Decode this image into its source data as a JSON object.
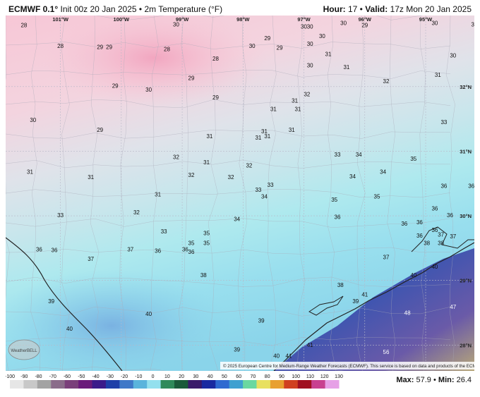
{
  "header": {
    "model": "ECMWF 0.1°",
    "init": "Init 00z 20 Jan 2025",
    "sep": "•",
    "variable": "2m Temperature (°F)",
    "hour_label": "Hour:",
    "hour": "17",
    "valid_label": "Valid:",
    "valid": "17z Mon 20 Jan 2025"
  },
  "map": {
    "lon_labels": [
      "101°W",
      "100°W",
      "99°W",
      "98°W",
      "97°W",
      "96°W",
      "95°W"
    ],
    "lat_labels": [
      "32°N",
      "31°N",
      "30°N",
      "29°N",
      "28°N"
    ],
    "logo_text": "WeatherBELL",
    "copyright": "© 2025 European Centre for Medium-Range Weather Forecasts (ECMWF). This service is based on data and products of the ECMWF.",
    "temps": [
      {
        "v": "28",
        "lon": -101.6,
        "lat": 32.92
      },
      {
        "v": "28",
        "lon": -101.0,
        "lat": 32.6
      },
      {
        "v": "29",
        "lon": -100.35,
        "lat": 32.58
      },
      {
        "v": "29",
        "lon": -100.2,
        "lat": 32.58
      },
      {
        "v": "30",
        "lon": -99.1,
        "lat": 32.93
      },
      {
        "v": "28",
        "lon": -99.25,
        "lat": 32.55
      },
      {
        "v": "28",
        "lon": -98.45,
        "lat": 32.4
      },
      {
        "v": "30",
        "lon": -97.85,
        "lat": 32.6
      },
      {
        "v": "29",
        "lon": -97.6,
        "lat": 32.72
      },
      {
        "v": "29",
        "lon": -97.4,
        "lat": 32.57
      },
      {
        "v": "30",
        "lon": -97.0,
        "lat": 32.9
      },
      {
        "v": "30",
        "lon": -96.9,
        "lat": 32.9
      },
      {
        "v": "30",
        "lon": -96.7,
        "lat": 32.75
      },
      {
        "v": "30",
        "lon": -96.35,
        "lat": 32.95
      },
      {
        "v": "29",
        "lon": -96.0,
        "lat": 32.92
      },
      {
        "v": "30",
        "lon": -94.85,
        "lat": 32.95
      },
      {
        "v": "30",
        "lon": -94.2,
        "lat": 32.93
      },
      {
        "v": "30",
        "lon": -96.9,
        "lat": 32.63
      },
      {
        "v": "31",
        "lon": -96.6,
        "lat": 32.47
      },
      {
        "v": "30",
        "lon": -96.9,
        "lat": 32.3
      },
      {
        "v": "31",
        "lon": -96.3,
        "lat": 32.27
      },
      {
        "v": "29",
        "lon": -100.1,
        "lat": 31.98
      },
      {
        "v": "30",
        "lon": -99.55,
        "lat": 31.92
      },
      {
        "v": "29",
        "lon": -98.85,
        "lat": 32.1
      },
      {
        "v": "29",
        "lon": -98.45,
        "lat": 31.8
      },
      {
        "v": "31",
        "lon": -97.5,
        "lat": 31.62
      },
      {
        "v": "31",
        "lon": -97.15,
        "lat": 31.75
      },
      {
        "v": "32",
        "lon": -96.95,
        "lat": 31.85
      },
      {
        "v": "31",
        "lon": -97.1,
        "lat": 31.62
      },
      {
        "v": "32",
        "lon": -95.65,
        "lat": 32.05
      },
      {
        "v": "31",
        "lon": -94.8,
        "lat": 32.15
      },
      {
        "v": "30",
        "lon": -94.55,
        "lat": 32.45
      },
      {
        "v": "31",
        "lon": -94.0,
        "lat": 32.63
      },
      {
        "v": "32",
        "lon": -94.05,
        "lat": 31.8
      },
      {
        "v": "33",
        "lon": -94.7,
        "lat": 31.42
      },
      {
        "v": "34",
        "lon": -94.1,
        "lat": 31.32
      },
      {
        "v": "30",
        "lon": -101.45,
        "lat": 31.45
      },
      {
        "v": "29",
        "lon": -100.35,
        "lat": 31.3
      },
      {
        "v": "31",
        "lon": -98.55,
        "lat": 31.2
      },
      {
        "v": "31",
        "lon": -97.75,
        "lat": 31.18
      },
      {
        "v": "31",
        "lon": -97.65,
        "lat": 31.28
      },
      {
        "v": "31",
        "lon": -97.6,
        "lat": 31.2
      },
      {
        "v": "31",
        "lon": -97.2,
        "lat": 31.3
      },
      {
        "v": "33",
        "lon": -96.45,
        "lat": 30.92
      },
      {
        "v": "34",
        "lon": -96.1,
        "lat": 30.92
      },
      {
        "v": "35",
        "lon": -95.2,
        "lat": 30.85
      },
      {
        "v": "32",
        "lon": -99.1,
        "lat": 30.88
      },
      {
        "v": "31",
        "lon": -98.6,
        "lat": 30.8
      },
      {
        "v": "32",
        "lon": -97.9,
        "lat": 30.75
      },
      {
        "v": "31",
        "lon": -101.5,
        "lat": 30.65
      },
      {
        "v": "31",
        "lon": -100.5,
        "lat": 30.57
      },
      {
        "v": "32",
        "lon": -98.85,
        "lat": 30.6
      },
      {
        "v": "32",
        "lon": -98.2,
        "lat": 30.57
      },
      {
        "v": "33",
        "lon": -97.75,
        "lat": 30.37
      },
      {
        "v": "33",
        "lon": -97.55,
        "lat": 30.45
      },
      {
        "v": "34",
        "lon": -96.2,
        "lat": 30.58
      },
      {
        "v": "34",
        "lon": -95.7,
        "lat": 30.65
      },
      {
        "v": "36",
        "lon": -94.7,
        "lat": 30.43
      },
      {
        "v": "36",
        "lon": -94.25,
        "lat": 30.43
      },
      {
        "v": "31",
        "lon": -99.4,
        "lat": 30.3
      },
      {
        "v": "34",
        "lon": -97.65,
        "lat": 30.27
      },
      {
        "v": "35",
        "lon": -96.5,
        "lat": 30.22
      },
      {
        "v": "35",
        "lon": -95.8,
        "lat": 30.27
      },
      {
        "v": "33",
        "lon": -101.0,
        "lat": 29.98
      },
      {
        "v": "32",
        "lon": -99.75,
        "lat": 30.02
      },
      {
        "v": "36",
        "lon": -94.85,
        "lat": 30.08
      },
      {
        "v": "36",
        "lon": -94.6,
        "lat": 29.98
      },
      {
        "v": "34",
        "lon": -98.1,
        "lat": 29.92
      },
      {
        "v": "36",
        "lon": -96.45,
        "lat": 29.95
      },
      {
        "v": "36",
        "lon": -95.35,
        "lat": 29.85
      },
      {
        "v": "36",
        "lon": -95.1,
        "lat": 29.87
      },
      {
        "v": "33",
        "lon": -99.3,
        "lat": 29.73
      },
      {
        "v": "35",
        "lon": -98.6,
        "lat": 29.7
      },
      {
        "v": "36",
        "lon": -95.1,
        "lat": 29.66
      },
      {
        "v": "36",
        "lon": -94.85,
        "lat": 29.75
      },
      {
        "v": "37",
        "lon": -94.75,
        "lat": 29.68
      },
      {
        "v": "37",
        "lon": -94.55,
        "lat": 29.65
      },
      {
        "v": "38",
        "lon": -94.75,
        "lat": 29.55
      },
      {
        "v": "38",
        "lon": -94.98,
        "lat": 29.55
      },
      {
        "v": "35",
        "lon": -98.6,
        "lat": 29.55
      },
      {
        "v": "35",
        "lon": -98.85,
        "lat": 29.55
      },
      {
        "v": "36",
        "lon": -98.95,
        "lat": 29.45
      },
      {
        "v": "36",
        "lon": -98.85,
        "lat": 29.41
      },
      {
        "v": "36",
        "lon": -101.35,
        "lat": 29.45
      },
      {
        "v": "36",
        "lon": -101.1,
        "lat": 29.44
      },
      {
        "v": "37",
        "lon": -99.85,
        "lat": 29.45
      },
      {
        "v": "36",
        "lon": -99.4,
        "lat": 29.43
      },
      {
        "v": "37",
        "lon": -100.5,
        "lat": 29.3
      },
      {
        "v": "37",
        "lon": -95.65,
        "lat": 29.33
      },
      {
        "v": "40",
        "lon": -94.85,
        "lat": 29.18
      },
      {
        "v": "41",
        "lon": -93.95,
        "lat": 29.24
      },
      {
        "v": "40",
        "lon": -95.2,
        "lat": 29.05
      },
      {
        "v": "38",
        "lon": -98.65,
        "lat": 29.05
      },
      {
        "v": "38",
        "lon": -96.4,
        "lat": 28.9
      },
      {
        "v": "41",
        "lon": -96.0,
        "lat": 28.75
      },
      {
        "v": "39",
        "lon": -101.15,
        "lat": 28.65
      },
      {
        "v": "39",
        "lon": -96.15,
        "lat": 28.65
      },
      {
        "v": "40",
        "lon": -99.55,
        "lat": 28.45
      },
      {
        "v": "48",
        "lon": -95.3,
        "lat": 28.47
      },
      {
        "v": "47",
        "lon": -94.55,
        "lat": 28.56
      },
      {
        "v": "39",
        "lon": -97.7,
        "lat": 28.35
      },
      {
        "v": "40",
        "lon": -100.85,
        "lat": 28.22
      },
      {
        "v": "41",
        "lon": -96.9,
        "lat": 27.97
      },
      {
        "v": "39",
        "lon": -98.1,
        "lat": 27.9
      },
      {
        "v": "40",
        "lon": -97.45,
        "lat": 27.8
      },
      {
        "v": "41",
        "lon": -97.25,
        "lat": 27.8
      },
      {
        "v": "56",
        "lon": -95.65,
        "lat": 27.86
      }
    ]
  },
  "colorbar": {
    "ticks": [
      "-100",
      "-90",
      "-80",
      "-70",
      "-60",
      "-50",
      "-40",
      "-30",
      "-20",
      "-10",
      "0",
      "10",
      "20",
      "30",
      "40",
      "50",
      "60",
      "70",
      "80",
      "90",
      "100",
      "110",
      "120",
      "130"
    ],
    "colors": [
      "#e6e6e6",
      "#c8c8c8",
      "#a3a3a3",
      "#8a6c8a",
      "#7a3f7a",
      "#6a1a7a",
      "#3b1a8a",
      "#1e3fa8",
      "#3f78c8",
      "#5ab4dc",
      "#93e0ee",
      "#2f8a5a",
      "#1a5a3a",
      "#3a1a6a",
      "#1a2aa0",
      "#2f6ad0",
      "#3fa0d0",
      "#6ad8a0",
      "#e8e060",
      "#e8a030",
      "#d04020",
      "#a01020",
      "#c84090",
      "#e6a0e6"
    ]
  },
  "stats": {
    "max_label": "Max:",
    "max": "57.9",
    "min_label": "Min:",
    "min": "26.4"
  }
}
